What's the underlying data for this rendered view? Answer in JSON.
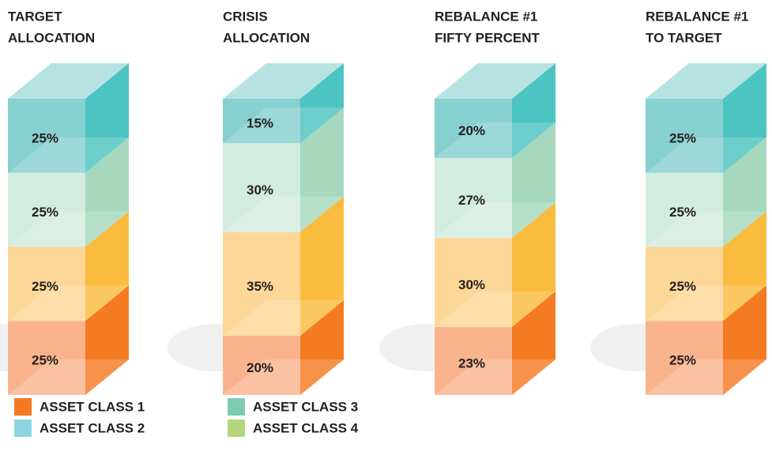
{
  "chart_data": {
    "type": "stacked-3d-column",
    "categories": [
      [
        "TARGET",
        "ALLOCATION"
      ],
      [
        "CRISIS",
        "ALLOCATION"
      ],
      [
        "REBALANCE #1",
        "FIFTY PERCENT"
      ],
      [
        "REBALANCE #1",
        "TO TARGET"
      ]
    ],
    "series": [
      {
        "name": "ASSET CLASS 1",
        "color": "#f47920",
        "bar_color": "#f9b48e",
        "side_color": "#f47b22",
        "values": [
          25,
          20,
          23,
          25
        ],
        "value_labels": [
          "25%",
          "20%",
          "23%",
          "25%"
        ]
      },
      {
        "name": "ASSET CLASS 2",
        "color": "#8fd4e2",
        "bar_color": "#fdd797",
        "side_color": "#fbbb3e",
        "values": [
          25,
          35,
          30,
          25
        ],
        "value_labels": [
          "25%",
          "35%",
          "30%",
          "25%"
        ]
      },
      {
        "name": "ASSET CLASS 3",
        "color": "#7fcbb0",
        "bar_color": "#d3ece0",
        "side_color": "#a6d8be",
        "values": [
          25,
          30,
          27,
          25
        ],
        "value_labels": [
          "25%",
          "30%",
          "27%",
          "25%"
        ]
      },
      {
        "name": "ASSET CLASS 4",
        "color": "#b3d67a",
        "bar_color": "#86d0cf",
        "side_color": "#4cc4c2",
        "values": [
          25,
          15,
          20,
          25
        ],
        "value_labels": [
          "25%",
          "15%",
          "20%",
          "25%"
        ]
      }
    ]
  }
}
